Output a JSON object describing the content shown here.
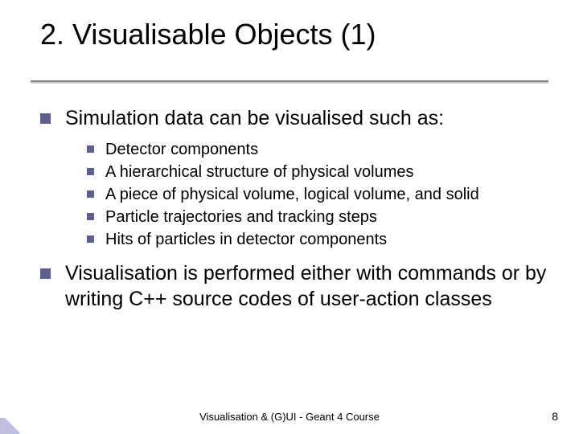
{
  "title": "2. Visualisable Objects (1)",
  "colors": {
    "bullet": "#5f5f8f",
    "text": "#000000",
    "rule": "#808080",
    "corner_fill": "#bfbfdf",
    "background": "#ffffff"
  },
  "typography": {
    "family": "Verdana",
    "title_size_pt": 36,
    "lvl1_size_pt": 25,
    "lvl2_size_pt": 20,
    "footer_size_pt": 13
  },
  "body": {
    "section1": {
      "text": "Simulation data can be visualised such as:",
      "items": [
        {
          "text": "Detector components"
        },
        {
          "text": "A hierarchical structure of physical volumes"
        },
        {
          "text": "A piece of physical volume, logical volume, and solid"
        },
        {
          "text": "Particle trajectories and tracking steps"
        },
        {
          "text": "Hits of particles in detector components"
        }
      ]
    },
    "section2": {
      "text": "Visualisation is performed either with commands or by writing C++ source codes of user-action classes"
    }
  },
  "footer": {
    "center": "Visualisation & (G)UI - Geant 4 Course",
    "page": "8"
  }
}
